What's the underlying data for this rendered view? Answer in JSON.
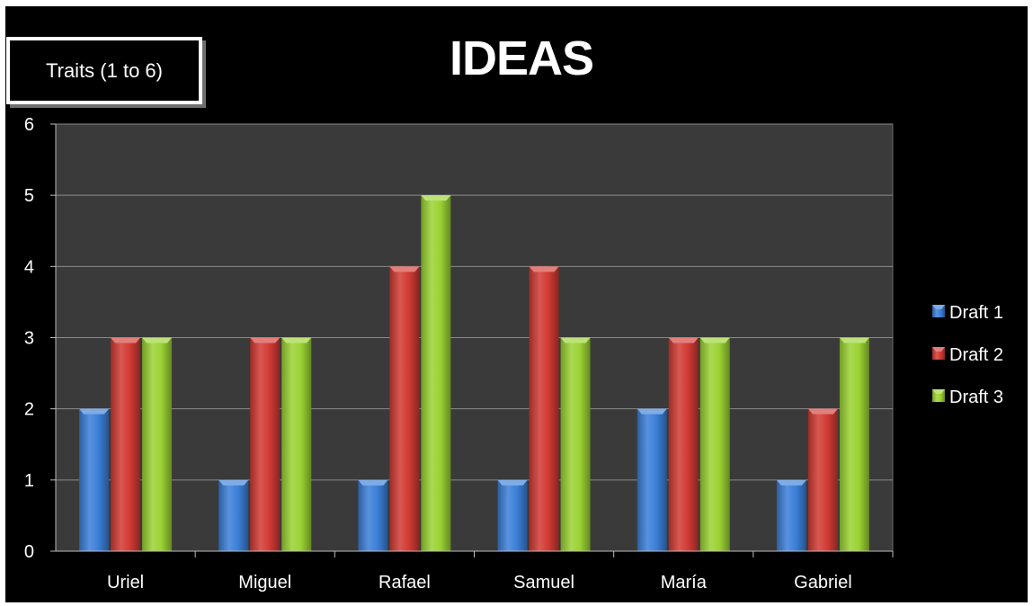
{
  "chart_data": {
    "type": "bar",
    "title": "IDEAS",
    "ylabel": "Traits (1 to 6)",
    "xlabel": "",
    "categories": [
      "Uriel",
      "Miguel",
      "Rafael",
      "Samuel",
      "María",
      "Gabriel"
    ],
    "series": [
      {
        "name": "Draft 1",
        "values": [
          2,
          1,
          1,
          1,
          2,
          1
        ],
        "color": "#3b7fd8"
      },
      {
        "name": "Draft 2",
        "values": [
          3,
          3,
          4,
          4,
          3,
          2
        ],
        "color": "#d23a34"
      },
      {
        "name": "Draft 3",
        "values": [
          3,
          3,
          5,
          3,
          3,
          3
        ],
        "color": "#9bd233"
      }
    ],
    "ylim": [
      0,
      6
    ],
    "yticks": [
      0,
      1,
      2,
      3,
      4,
      5,
      6
    ],
    "grid": true,
    "legend_position": "right",
    "plot_background": "#3a3a3a",
    "background": "#000000"
  }
}
